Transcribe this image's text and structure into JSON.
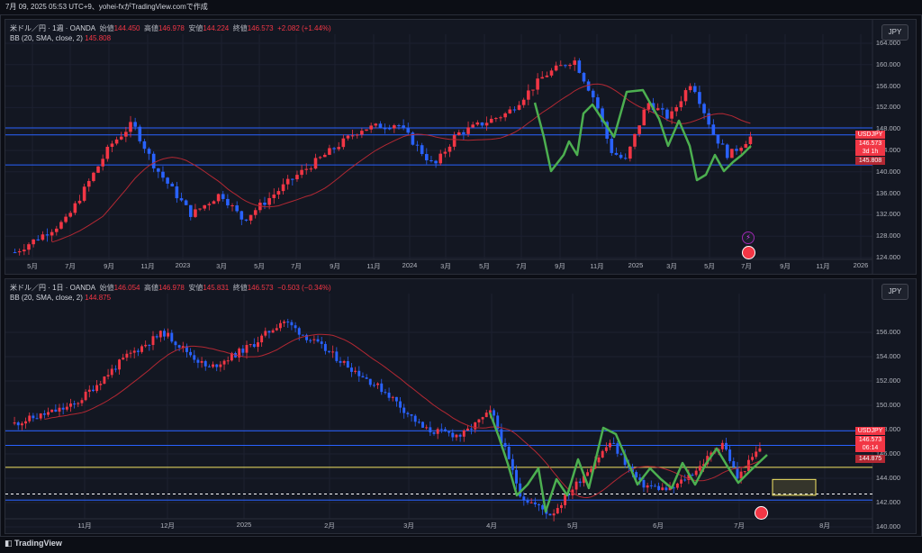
{
  "header": {
    "text": "7月 09, 2025 05:53 UTC+9、yohei-fxがTradingView.comで作成"
  },
  "top_chart": {
    "symbol": "米ドル／円 · 1週 · OANDA",
    "open_label": "始値",
    "open": "144.450",
    "high_label": "高値",
    "high": "146.978",
    "low_label": "安値",
    "low": "144.224",
    "close_label": "終値",
    "close": "146.573",
    "change": "+2.082 (+1.44%)",
    "indicator": "BB (20, SMA, close, 2)",
    "indicator_value": "145.808",
    "currency_button": "JPY",
    "y_ticks": [
      "164.000",
      "160.000",
      "156.000",
      "152.000",
      "148.000",
      "144.000",
      "140.000",
      "136.000",
      "132.000",
      "128.000",
      "124.000"
    ],
    "x_ticks": [
      "5月",
      "7月",
      "9月",
      "11月",
      "2023",
      "3月",
      "5月",
      "7月",
      "9月",
      "11月",
      "2024",
      "3月",
      "5月",
      "7月",
      "9月",
      "11月",
      "2025",
      "3月",
      "5月",
      "7月",
      "9月",
      "11月",
      "2026"
    ],
    "tags": {
      "symbol": "USDJPY",
      "price": "146.573",
      "countdown": "3d 1h",
      "bb": "145.808"
    }
  },
  "bottom_chart": {
    "symbol": "米ドル／円 · 1日 · OANDA",
    "open_label": "始値",
    "open": "146.054",
    "high_label": "高値",
    "high": "146.978",
    "low_label": "安値",
    "low": "145.831",
    "close_label": "終値",
    "close": "146.573",
    "change": "−0.503 (−0.34%)",
    "indicator": "BB (20, SMA, close, 2)",
    "indicator_value": "144.875",
    "currency_button": "JPY",
    "y_ticks": [
      "156.000",
      "154.000",
      "152.000",
      "150.000",
      "148.000",
      "146.000",
      "144.000",
      "142.000",
      "140.000"
    ],
    "x_ticks": [
      "11月",
      "12月",
      "2025",
      "2月",
      "3月",
      "4月",
      "5月",
      "6月",
      "7月",
      "8月"
    ],
    "tags": {
      "symbol": "USDJPY",
      "price": "146.573",
      "countdown": "06:14",
      "bb": "144.875"
    }
  },
  "footer": {
    "logo": "TradingView"
  },
  "colors": {
    "bull": "#f23645",
    "bear": "#2962ff",
    "bb": "#b22833",
    "wave": "#4caf50",
    "hline": "#2962ff",
    "yellow": "#f5e664"
  }
}
